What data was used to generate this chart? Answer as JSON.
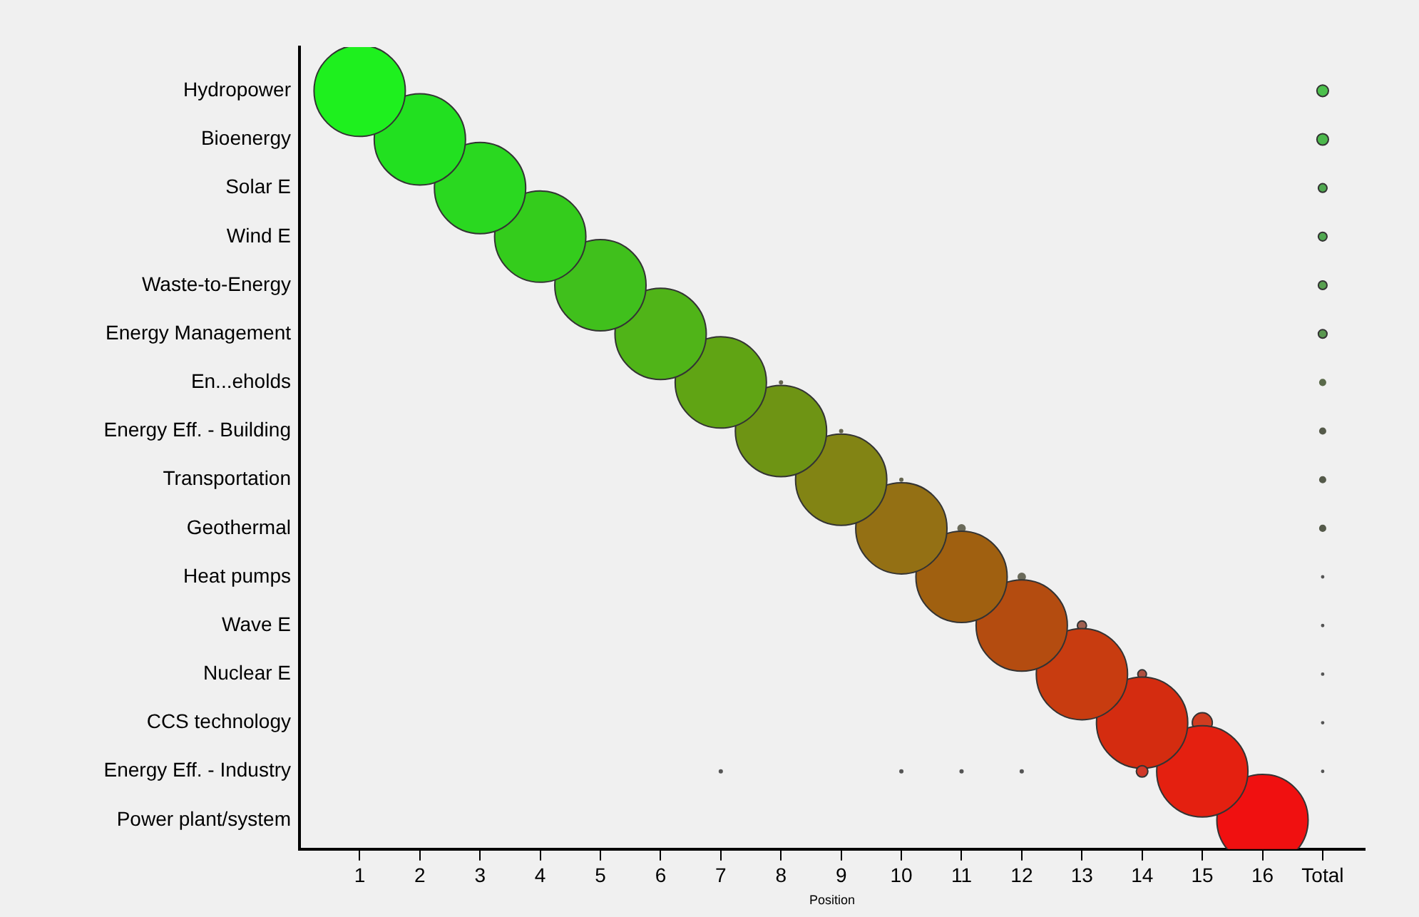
{
  "chart_data": {
    "type": "bubble",
    "orientation": "horizontal",
    "xlabel": "Position",
    "legend": false,
    "grid": false,
    "categories": [
      "Hydropower",
      "Bioenergy",
      "Solar E",
      "Wind E",
      "Waste-to-Energy",
      "Energy Management",
      "En...eholds",
      "Energy Eff. - Building",
      "Transportation",
      "Geothermal",
      "Heat pumps",
      "Wave E",
      "Nuclear E",
      "CCS technology",
      "Energy Eff. - Industry",
      "Power plant/system"
    ],
    "xlim": [
      0,
      17.7
    ],
    "xticks": [
      1,
      2,
      3,
      4,
      5,
      6,
      7,
      8,
      9,
      10,
      11,
      12,
      13,
      14,
      15,
      16,
      {
        "value": 17,
        "label": "Total"
      }
    ],
    "series": [
      {
        "values": [
          1,
          null,
          null,
          null,
          null,
          null,
          null,
          null,
          null,
          null,
          null,
          null,
          null,
          null,
          null,
          null
        ],
        "sizes": [
          1,
          null,
          null,
          null,
          null,
          null,
          null,
          null,
          null,
          null,
          null,
          null,
          null,
          null,
          null,
          null
        ],
        "colors": [
          "#1ef01e",
          null,
          null,
          null,
          null,
          null,
          null,
          null,
          null,
          null,
          null,
          null,
          null,
          null,
          null,
          null
        ]
      },
      {
        "values": [
          null,
          2,
          null,
          null,
          null,
          null,
          null,
          null,
          null,
          null,
          null,
          null,
          null,
          null,
          null,
          null
        ],
        "sizes": [
          null,
          1,
          null,
          null,
          null,
          null,
          null,
          null,
          null,
          null,
          null,
          null,
          null,
          null,
          null,
          null
        ],
        "colors": [
          null,
          "#22e020",
          null,
          null,
          null,
          null,
          null,
          null,
          null,
          null,
          null,
          null,
          null,
          null,
          null,
          null
        ]
      },
      {
        "values": [
          null,
          null,
          3,
          null,
          null,
          null,
          null,
          null,
          null,
          null,
          null,
          null,
          null,
          null,
          null,
          null
        ],
        "sizes": [
          null,
          null,
          1,
          null,
          null,
          null,
          null,
          null,
          null,
          null,
          null,
          null,
          null,
          null,
          null,
          null
        ],
        "colors": [
          null,
          null,
          "#2ad820",
          null,
          null,
          null,
          null,
          null,
          null,
          null,
          null,
          null,
          null,
          null,
          null,
          null
        ]
      },
      {
        "values": [
          null,
          null,
          null,
          4,
          null,
          null,
          null,
          null,
          null,
          null,
          null,
          null,
          null,
          null,
          null,
          null
        ],
        "sizes": [
          null,
          null,
          null,
          1,
          null,
          null,
          null,
          null,
          null,
          null,
          null,
          null,
          null,
          null,
          null,
          null
        ],
        "colors": [
          null,
          null,
          null,
          "#34cc1c",
          null,
          null,
          null,
          null,
          null,
          null,
          null,
          null,
          null,
          null,
          null,
          null
        ]
      },
      {
        "values": [
          null,
          null,
          null,
          null,
          5,
          null,
          null,
          null,
          null,
          null,
          null,
          null,
          null,
          null,
          null,
          null
        ],
        "sizes": [
          null,
          null,
          null,
          null,
          1,
          null,
          null,
          null,
          null,
          null,
          null,
          null,
          null,
          null,
          null,
          null
        ],
        "colors": [
          null,
          null,
          null,
          null,
          "#40c01c",
          null,
          null,
          null,
          null,
          null,
          null,
          null,
          null,
          null,
          null,
          null
        ]
      },
      {
        "values": [
          null,
          null,
          null,
          null,
          null,
          6,
          null,
          null,
          null,
          null,
          null,
          null,
          null,
          null,
          null,
          null
        ],
        "sizes": [
          null,
          null,
          null,
          null,
          null,
          1,
          null,
          null,
          null,
          null,
          null,
          null,
          null,
          null,
          null,
          null
        ],
        "colors": [
          null,
          null,
          null,
          null,
          null,
          "#50b418",
          null,
          null,
          null,
          null,
          null,
          null,
          null,
          null,
          null,
          null
        ]
      },
      {
        "values": [
          null,
          null,
          null,
          null,
          null,
          null,
          7,
          null,
          null,
          null,
          null,
          null,
          null,
          null,
          7,
          null
        ],
        "sizes": [
          null,
          null,
          null,
          null,
          null,
          null,
          1,
          null,
          null,
          null,
          null,
          null,
          null,
          null,
          0.001,
          null
        ],
        "colors": [
          null,
          null,
          null,
          null,
          null,
          null,
          "#60a414",
          null,
          null,
          null,
          null,
          null,
          null,
          null,
          "#555555",
          null
        ]
      },
      {
        "values": [
          null,
          null,
          null,
          null,
          null,
          null,
          8,
          8,
          null,
          null,
          null,
          null,
          null,
          null,
          null,
          null
        ],
        "sizes": [
          null,
          null,
          null,
          null,
          null,
          null,
          0.001,
          1,
          null,
          null,
          null,
          null,
          null,
          null,
          null,
          null
        ],
        "colors": [
          null,
          null,
          null,
          null,
          null,
          null,
          "#666650",
          "#6e9414",
          null,
          null,
          null,
          null,
          null,
          null,
          null,
          null
        ]
      },
      {
        "values": [
          null,
          null,
          null,
          null,
          null,
          null,
          null,
          9,
          9,
          null,
          null,
          null,
          null,
          null,
          null,
          null
        ],
        "sizes": [
          null,
          null,
          null,
          null,
          null,
          null,
          null,
          0.001,
          1,
          null,
          null,
          null,
          null,
          null,
          null,
          null
        ],
        "colors": [
          null,
          null,
          null,
          null,
          null,
          null,
          null,
          "#666650",
          "#828414",
          null,
          null,
          null,
          null,
          null,
          null,
          null
        ]
      },
      {
        "values": [
          null,
          null,
          null,
          null,
          null,
          null,
          null,
          null,
          10,
          10,
          null,
          null,
          null,
          null,
          10,
          null
        ],
        "sizes": [
          null,
          null,
          null,
          null,
          null,
          null,
          null,
          null,
          0.001,
          1,
          null,
          null,
          null,
          null,
          0.001,
          null
        ],
        "colors": [
          null,
          null,
          null,
          null,
          null,
          null,
          null,
          null,
          "#666650",
          "#947014",
          null,
          null,
          null,
          null,
          "#555555",
          null
        ]
      },
      {
        "values": [
          null,
          null,
          null,
          null,
          null,
          null,
          null,
          null,
          null,
          11,
          11,
          null,
          null,
          null,
          11,
          null
        ],
        "sizes": [
          null,
          null,
          null,
          null,
          null,
          null,
          null,
          null,
          null,
          0.006,
          1,
          null,
          null,
          null,
          0.001,
          null
        ],
        "colors": [
          null,
          null,
          null,
          null,
          null,
          null,
          null,
          null,
          null,
          "#6a6a5a",
          "#a06010",
          null,
          null,
          null,
          "#555555",
          null
        ]
      },
      {
        "values": [
          null,
          null,
          null,
          null,
          null,
          null,
          null,
          null,
          null,
          null,
          12,
          12,
          null,
          null,
          12,
          null
        ],
        "sizes": [
          null,
          null,
          null,
          null,
          null,
          null,
          null,
          null,
          null,
          null,
          0.006,
          1,
          null,
          null,
          0.001,
          null
        ],
        "colors": [
          null,
          null,
          null,
          null,
          null,
          null,
          null,
          null,
          null,
          null,
          "#6a6a5a",
          "#b44c10",
          null,
          null,
          "#555555",
          null
        ]
      },
      {
        "values": [
          null,
          null,
          null,
          null,
          null,
          null,
          null,
          null,
          null,
          null,
          null,
          13,
          13,
          null,
          null,
          null
        ],
        "sizes": [
          null,
          null,
          null,
          null,
          null,
          null,
          null,
          null,
          null,
          null,
          null,
          0.01,
          1,
          null,
          null,
          null
        ],
        "colors": [
          null,
          null,
          null,
          null,
          null,
          null,
          null,
          null,
          null,
          null,
          null,
          "#a06050",
          "#c83c10",
          null,
          null,
          null
        ]
      },
      {
        "values": [
          null,
          null,
          null,
          null,
          null,
          null,
          null,
          null,
          null,
          null,
          null,
          null,
          14,
          14,
          14,
          null
        ],
        "sizes": [
          null,
          null,
          null,
          null,
          null,
          null,
          null,
          null,
          null,
          null,
          null,
          null,
          0.009,
          1,
          0.016,
          null
        ],
        "colors": [
          null,
          null,
          null,
          null,
          null,
          null,
          null,
          null,
          null,
          null,
          null,
          null,
          "#b05040",
          "#d42c10",
          "#d03828",
          null
        ]
      },
      {
        "values": [
          null,
          null,
          null,
          null,
          null,
          null,
          null,
          null,
          null,
          null,
          null,
          null,
          null,
          15,
          15,
          null
        ],
        "sizes": [
          null,
          null,
          null,
          null,
          null,
          null,
          null,
          null,
          null,
          null,
          null,
          null,
          null,
          0.048,
          1,
          null
        ],
        "colors": [
          null,
          null,
          null,
          null,
          null,
          null,
          null,
          null,
          null,
          null,
          null,
          null,
          null,
          "#d03c20",
          "#e42010",
          null
        ]
      },
      {
        "values": [
          null,
          null,
          null,
          null,
          null,
          null,
          null,
          null,
          null,
          null,
          null,
          null,
          null,
          null,
          null,
          16
        ],
        "sizes": [
          null,
          null,
          null,
          null,
          null,
          null,
          null,
          null,
          null,
          null,
          null,
          null,
          null,
          null,
          null,
          1
        ],
        "colors": [
          null,
          null,
          null,
          null,
          null,
          null,
          null,
          null,
          null,
          null,
          null,
          null,
          null,
          null,
          null,
          "#f01010"
        ]
      },
      {
        "values": [
          17,
          17,
          17,
          17,
          17,
          17,
          17,
          17,
          17,
          17,
          17,
          17,
          17,
          17,
          17,
          null
        ],
        "sizes": [
          0.016,
          0.016,
          0.009,
          0.009,
          0.009,
          0.009,
          0.004,
          0.004,
          0.004,
          0.004,
          0.0005,
          0.0005,
          0.0005,
          0.0005,
          0.0005,
          null
        ],
        "colors": [
          "#4cc04c",
          "#4cb84c",
          "#50a850",
          "#50a850",
          "#58a050",
          "#5a9850",
          "#5a6a4a",
          "#555a4a",
          "#555a4a",
          "#555a4a",
          "#555555",
          "#555555",
          "#555555",
          "#555555",
          "#555555",
          null
        ]
      }
    ]
  }
}
